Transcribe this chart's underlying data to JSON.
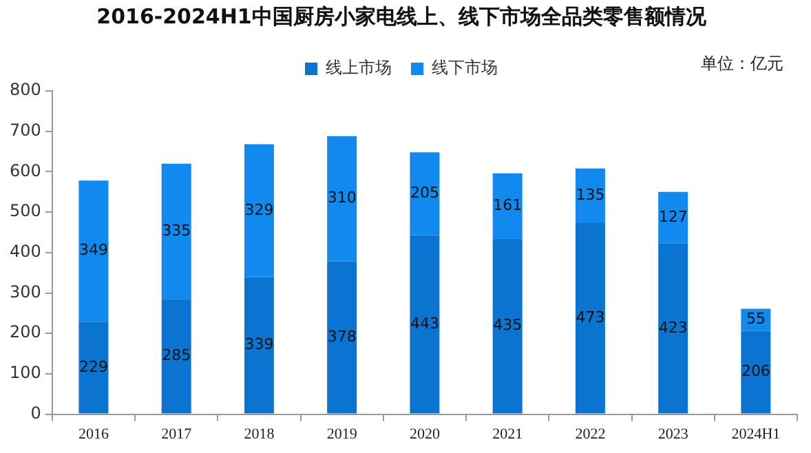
{
  "chart_data": {
    "type": "bar",
    "title": "2016-2024H1中国厨房小家电线上、线下市场全品类零售额情况",
    "categories": [
      "2016",
      "2017",
      "2018",
      "2019",
      "2020",
      "2021",
      "2022",
      "2023",
      "2024H1"
    ],
    "series": [
      {
        "name": "线上市场",
        "color": "#0b74d1",
        "values": [
          229,
          285,
          339,
          378,
          443,
          435,
          473,
          423,
          206
        ]
      },
      {
        "name": "线下市场",
        "color": "#1189ef",
        "values": [
          349,
          335,
          329,
          310,
          205,
          161,
          135,
          127,
          55
        ]
      }
    ],
    "stacked": true,
    "ylim": [
      0,
      800
    ],
    "yticks": [
      0,
      100,
      200,
      300,
      400,
      500,
      600,
      700,
      800
    ],
    "grid": false,
    "legend": "top",
    "data_labels": true,
    "annotations": [
      "单位：亿元"
    ]
  }
}
